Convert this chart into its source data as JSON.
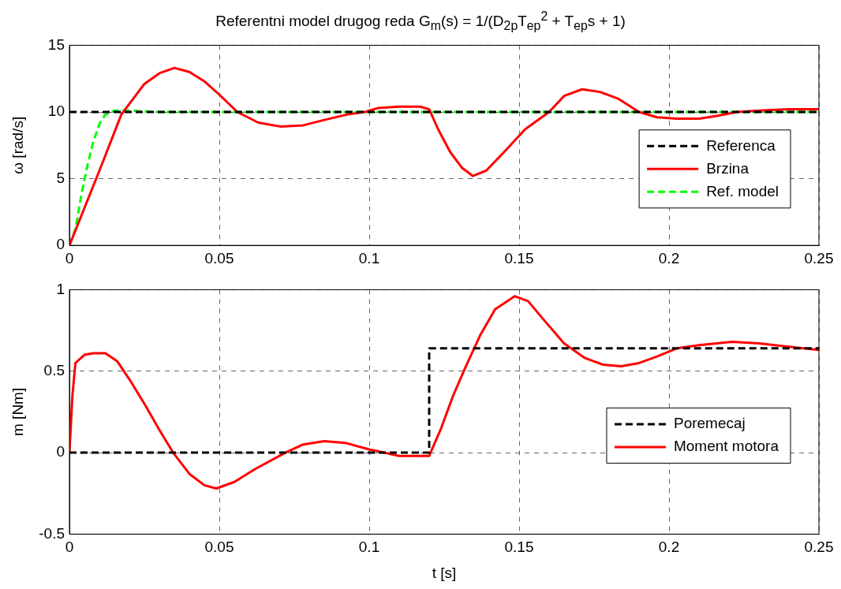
{
  "chart_data": [
    {
      "type": "line",
      "title": "Referentni model drugog reda G$_{m}$(s) = 1/(D$_{2p}$T$_{ep}$$^{2}$ + T$_{ep}$s + 1)",
      "ylabel": "ω [rad/s]",
      "xlim": [
        0,
        0.25
      ],
      "xticks": [
        0,
        0.05,
        0.1,
        0.15,
        0.2,
        0.25
      ],
      "ylim": [
        0,
        15
      ],
      "yticks": [
        0,
        5,
        10,
        15
      ],
      "grid": true,
      "legend": "right",
      "marker": "none",
      "series": [
        {
          "name": "Referenca",
          "color": "#000000",
          "line_style": "dashed",
          "x": [
            0,
            0.25
          ],
          "values": [
            10,
            10
          ]
        },
        {
          "name": "Brzina",
          "color": "#ff0000",
          "line_style": "solid",
          "x": [
            0,
            0.005,
            0.01,
            0.0173,
            0.025,
            0.03,
            0.035,
            0.04,
            0.045,
            0.05,
            0.056,
            0.063,
            0.0706,
            0.078,
            0.085,
            0.0925,
            0.0986,
            0.103,
            0.11,
            0.117,
            0.12,
            0.123,
            0.127,
            0.131,
            0.1346,
            0.139,
            0.145,
            0.152,
            0.16,
            0.165,
            0.171,
            0.177,
            0.183,
            0.19,
            0.196,
            0.2026,
            0.21,
            0.216,
            0.2226,
            0.23,
            0.24,
            0.25
          ],
          "values": [
            0,
            2.8,
            5.6,
            9.8,
            12.1,
            12.9,
            13.3,
            13,
            12.3,
            11.3,
            10,
            9.2,
            8.9,
            9,
            9.4,
            9.8,
            10,
            10.3,
            10.4,
            10.4,
            10.2,
            8.7,
            7,
            5.8,
            5.2,
            5.6,
            7,
            8.7,
            10,
            11.2,
            11.7,
            11.5,
            11,
            10,
            9.6,
            9.5,
            9.5,
            9.7,
            10,
            10.1,
            10.2,
            10.2
          ]
        },
        {
          "name": "Ref. model",
          "color": "#00ff00",
          "line_style": "dashed",
          "x": [
            0,
            0.002,
            0.004,
            0.006,
            0.008,
            0.01,
            0.012,
            0.015,
            0.02,
            0.025,
            0.03,
            0.25
          ],
          "values": [
            0,
            1.2,
            3.8,
            6,
            7.8,
            9.1,
            9.8,
            10.1,
            10.1,
            10.05,
            10,
            10
          ]
        }
      ]
    },
    {
      "type": "line",
      "xlabel": "t [s]",
      "ylabel": "m [Nm]",
      "xlim": [
        0,
        0.25
      ],
      "xticks": [
        0,
        0.05,
        0.1,
        0.15,
        0.2,
        0.25
      ],
      "ylim": [
        -0.5,
        1
      ],
      "yticks": [
        -0.5,
        0,
        0.5,
        1
      ],
      "grid": true,
      "legend": "right",
      "marker": "none",
      "series": [
        {
          "name": "Poremecaj",
          "color": "#000000",
          "line_style": "dashed",
          "x": [
            0,
            0.12,
            0.12,
            0.25
          ],
          "values": [
            0,
            0,
            0.64,
            0.64
          ]
        },
        {
          "name": "Moment motora",
          "color": "#ff0000",
          "line_style": "solid",
          "x": [
            0,
            0.001,
            0.002,
            0.005,
            0.008,
            0.012,
            0.016,
            0.02,
            0.025,
            0.03,
            0.0346,
            0.04,
            0.045,
            0.049,
            0.055,
            0.062,
            0.072,
            0.078,
            0.085,
            0.092,
            0.1,
            0.105,
            0.11,
            0.115,
            0.12,
            0.124,
            0.128,
            0.132,
            0.137,
            0.142,
            0.1485,
            0.153,
            0.158,
            0.165,
            0.172,
            0.178,
            0.184,
            0.19,
            0.196,
            0.2026,
            0.21,
            0.221,
            0.23,
            0.24,
            0.25
          ],
          "values": [
            0,
            0.35,
            0.55,
            0.6,
            0.61,
            0.61,
            0.56,
            0.45,
            0.3,
            0.14,
            0,
            -0.13,
            -0.2,
            -0.22,
            -0.18,
            -0.1,
            0,
            0.05,
            0.07,
            0.06,
            0.02,
            0,
            -0.02,
            -0.02,
            -0.02,
            0.15,
            0.35,
            0.52,
            0.72,
            0.88,
            0.96,
            0.93,
            0.82,
            0.67,
            0.58,
            0.54,
            0.53,
            0.55,
            0.59,
            0.64,
            0.66,
            0.68,
            0.67,
            0.65,
            0.63
          ]
        }
      ]
    }
  ]
}
